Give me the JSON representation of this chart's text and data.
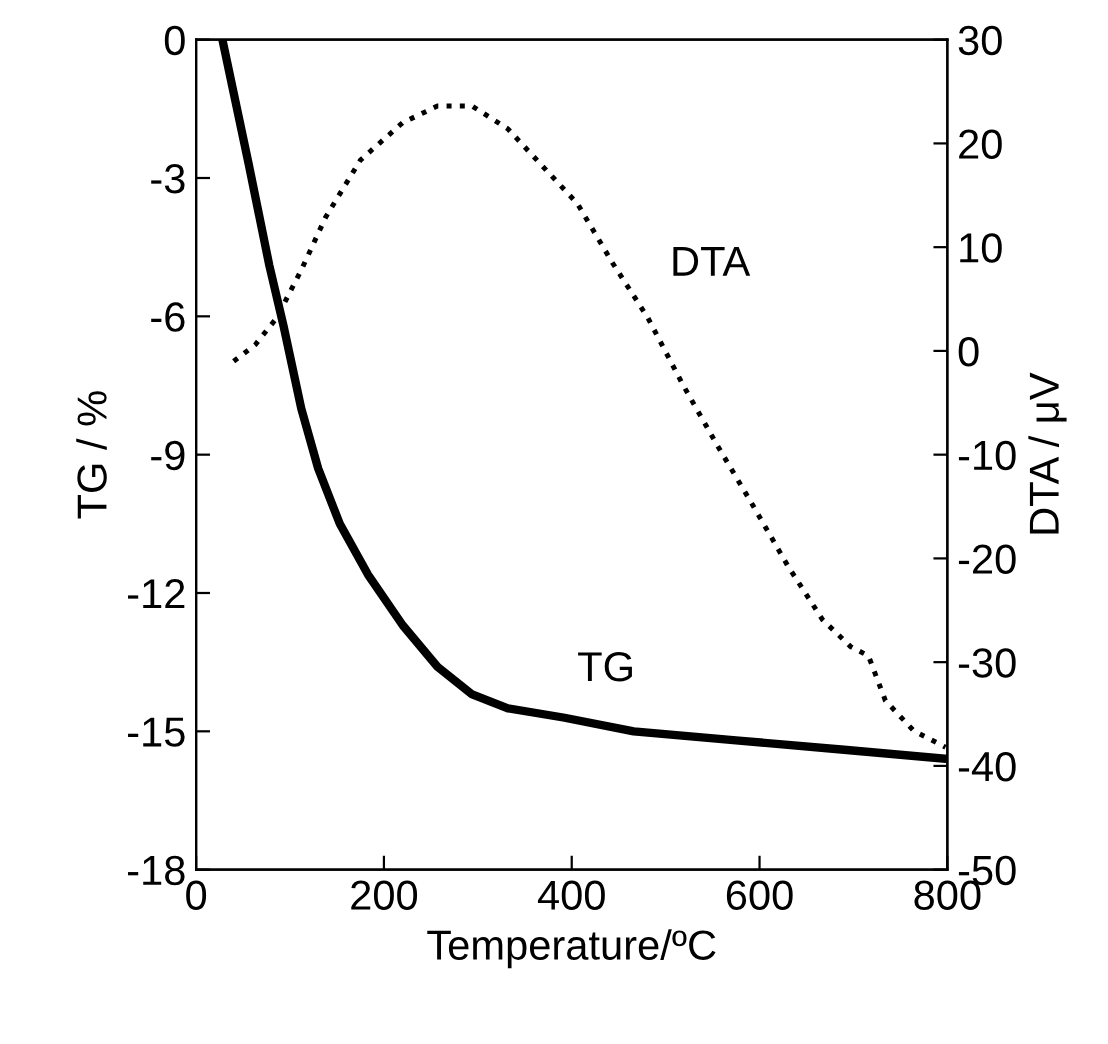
{
  "chart_data": {
    "type": "line",
    "xlabel": "Temperature/ºC",
    "ylabel": "TG / %",
    "y2label": "DTA / μV",
    "xlim": [
      0,
      800
    ],
    "xticks": [
      0,
      200,
      400,
      600,
      800
    ],
    "ylim": [
      -18,
      0
    ],
    "yticks": [
      -18,
      -15,
      -12,
      -9,
      -6,
      -3,
      0
    ],
    "y2lim": [
      -50,
      30
    ],
    "y2ticks": [
      -50,
      -40,
      -30,
      -20,
      -10,
      0,
      10,
      20,
      30
    ],
    "grid": false,
    "legend": false,
    "series": [
      {
        "name": "TG",
        "color": "#000000",
        "line_style": "solid",
        "x": [
          28,
          56,
          78,
          93,
          112,
          130,
          153,
          183,
          220,
          257,
          294,
          332,
          391,
          466,
          578,
          690,
          800
        ],
        "values": [
          0,
          -2.7,
          -4.9,
          -6.2,
          -8.0,
          -9.3,
          -10.5,
          -11.6,
          -12.7,
          -13.6,
          -14.2,
          -14.5,
          -14.7,
          -15.0,
          -15.2,
          -15.4,
          -15.6
        ]
      },
      {
        "name": "DTA",
        "color": "#000000",
        "line_style": "dotted",
        "axis": "y2",
        "x": [
          40,
          63,
          86,
          112,
          138,
          175,
          220,
          257,
          294,
          332,
          369,
          406,
          444,
          481,
          518,
          555,
          593,
          630,
          667,
          697,
          716,
          734,
          764,
          798
        ],
        "values": [
          -1.0,
          0.6,
          3.2,
          7.8,
          12.9,
          18.4,
          22.0,
          23.6,
          23.6,
          21.4,
          17.8,
          14.2,
          8.4,
          3.2,
          -3.2,
          -9.1,
          -14.9,
          -20.7,
          -25.9,
          -28.5,
          -29.4,
          -33.7,
          -36.6,
          -38.2
        ]
      }
    ]
  }
}
